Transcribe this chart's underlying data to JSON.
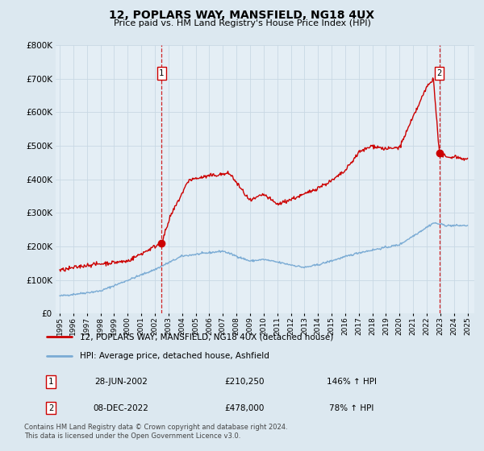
{
  "title": "12, POPLARS WAY, MANSFIELD, NG18 4UX",
  "subtitle": "Price paid vs. HM Land Registry's House Price Index (HPI)",
  "legend_line1": "12, POPLARS WAY, MANSFIELD, NG18 4UX (detached house)",
  "legend_line2": "HPI: Average price, detached house, Ashfield",
  "sale1_date": "28-JUN-2002",
  "sale1_price": "£210,250",
  "sale1_hpi": "146% ↑ HPI",
  "sale2_date": "08-DEC-2022",
  "sale2_price": "£478,000",
  "sale2_hpi": "78% ↑ HPI",
  "footer": "Contains HM Land Registry data © Crown copyright and database right 2024.\nThis data is licensed under the Open Government Licence v3.0.",
  "red_color": "#cc0000",
  "blue_color": "#7aabd4",
  "background_color": "#dce8f0",
  "plot_bg_color": "#e4eef5",
  "grid_color": "#c8d8e4",
  "ylim": [
    0,
    800000
  ],
  "xlim_start": 1994.7,
  "xlim_end": 2025.5,
  "sale1_x": 2002.49,
  "sale1_y": 210250,
  "sale2_x": 2022.92,
  "sale2_y": 478000
}
